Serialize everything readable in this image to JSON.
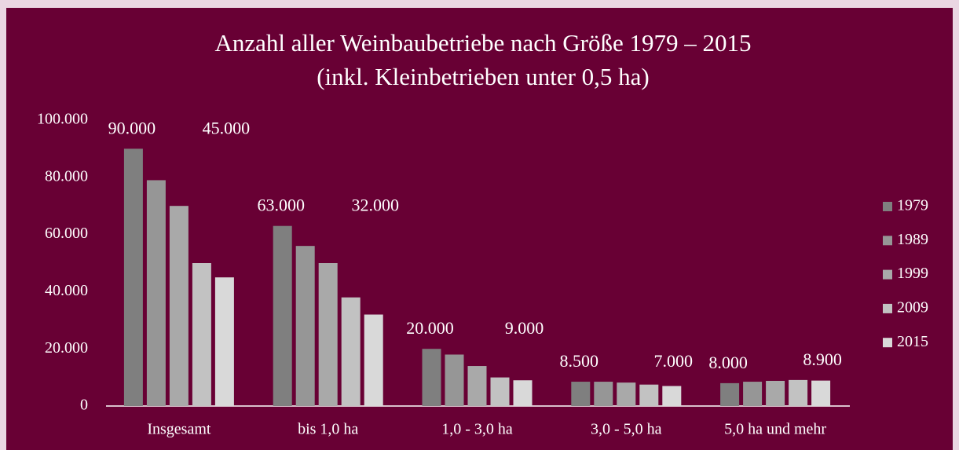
{
  "chart_data": {
    "type": "bar",
    "title": "Anzahl aller Weinbaubetriebe nach Größe 1979 – 2015",
    "subtitle": "(inkl. Kleinbetrieben unter 0,5 ha)",
    "categories": [
      "Insgesamt",
      "bis 1,0 ha",
      "1,0 - 3,0 ha",
      "3,0 - 5,0 ha",
      "5,0 ha und mehr"
    ],
    "series": [
      {
        "name": "1979",
        "color": "#7f7f7f",
        "values": [
          90000,
          63000,
          20000,
          8500,
          8000
        ],
        "value_labels": [
          "90.000",
          "63.000",
          "20.000",
          "8.500",
          "8.000"
        ]
      },
      {
        "name": "1989",
        "color": "#969696",
        "values": [
          79000,
          56000,
          18000,
          8500,
          8500
        ]
      },
      {
        "name": "1999",
        "color": "#a9a9a9",
        "values": [
          70000,
          50000,
          14000,
          8200,
          8800
        ]
      },
      {
        "name": "2009",
        "color": "#c2c2c2",
        "values": [
          50000,
          38000,
          10000,
          7500,
          9100
        ]
      },
      {
        "name": "2015",
        "color": "#d9d9d9",
        "values": [
          45000,
          32000,
          9000,
          7000,
          8900
        ],
        "value_labels": [
          "45.000",
          "32.000",
          "9.000",
          "7.000",
          "8.900"
        ]
      }
    ],
    "ylim": [
      0,
      100000
    ],
    "yticks": [
      0,
      {
        "value": 20000,
        "label": "20.000"
      },
      {
        "value": 40000,
        "label": "40.000"
      },
      {
        "value": 60000,
        "label": "60.000"
      },
      {
        "value": 80000,
        "label": "80.000"
      },
      {
        "value": 100000,
        "label": "100.000"
      }
    ],
    "grid": false,
    "legend": "right"
  }
}
